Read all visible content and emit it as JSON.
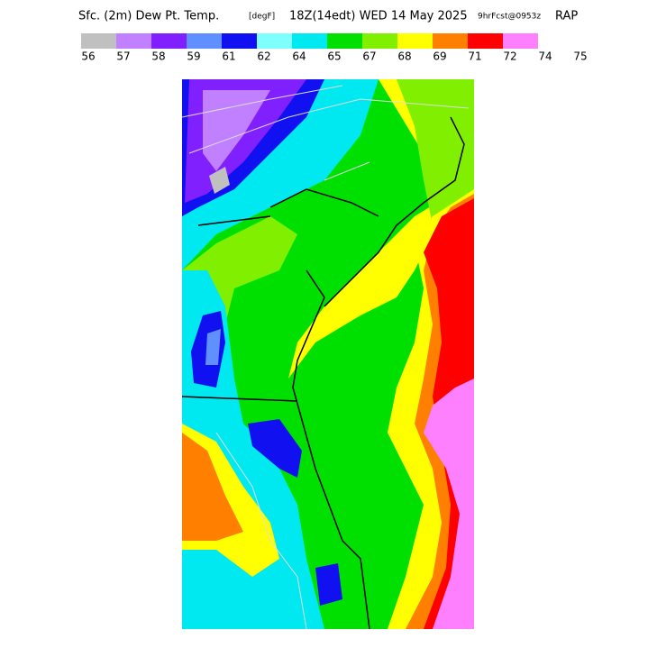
{
  "header": {
    "title": "Sfc. (2m) Dew Pt. Temp.",
    "units": "[degF]",
    "valid": "18Z(14edt) WED 14 May 2025",
    "forecast": "9hrFcst@0953z",
    "model": "RAP"
  },
  "legend": {
    "colors": [
      "#c0c0c0",
      "#c080ff",
      "#8020ff",
      "#6090ff",
      "#1010f0",
      "#80ffff",
      "#00e8f0",
      "#00e000",
      "#80f000",
      "#ffff00",
      "#ff8000",
      "#ff0000",
      "#ff80ff"
    ],
    "labels": [
      56,
      57,
      58,
      59,
      61,
      62,
      64,
      65,
      67,
      68,
      69,
      71,
      72,
      74,
      75
    ]
  }
}
